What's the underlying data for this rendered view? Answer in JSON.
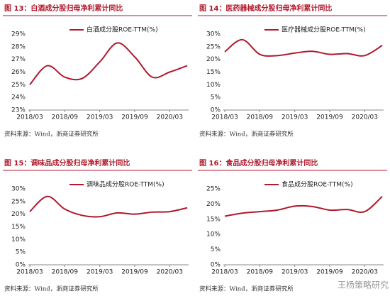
{
  "chart_data": [
    {
      "type": "line",
      "title": "图 13：白酒成分股归母净利累计同比",
      "source": "资料来源：Wind，浙商证券研究所",
      "x": [
        "2018/03",
        "2018/06",
        "2018/09",
        "2018/12",
        "2019/03",
        "2019/06",
        "2019/09",
        "2019/12",
        "2020/03",
        "2020/06"
      ],
      "xticks": [
        "2018/03",
        "2018/09",
        "2019/03",
        "2019/09",
        "2020/03"
      ],
      "series": [
        {
          "name": "白酒成分股ROE-TTM(%)",
          "color": "#b0182b",
          "values": [
            25.0,
            26.5,
            25.6,
            25.5,
            26.8,
            28.3,
            27.2,
            25.6,
            26.0,
            26.5
          ]
        }
      ],
      "ylim": [
        23,
        29
      ],
      "yticks": [
        {
          "value": 23,
          "label": "23%"
        },
        {
          "value": 24,
          "label": "24%"
        },
        {
          "value": 25,
          "label": "25%"
        },
        {
          "value": 26,
          "label": "26%"
        },
        {
          "value": 27,
          "label": "27%"
        },
        {
          "value": 28,
          "label": "28%"
        },
        {
          "value": 29,
          "label": "29%"
        }
      ],
      "grid": false
    },
    {
      "type": "line",
      "title": "图 14：医药器械成分股归母净利累计同比",
      "source": "资料来源：Wind，浙商证券研究所",
      "x": [
        "2018/03",
        "2018/06",
        "2018/09",
        "2018/12",
        "2019/03",
        "2019/06",
        "2019/09",
        "2019/12",
        "2020/03",
        "2020/06"
      ],
      "xticks": [
        "2018/03",
        "2018/09",
        "2019/03",
        "2019/09",
        "2020/03"
      ],
      "series": [
        {
          "name": "医疗器械成分股ROE-TTM(%)",
          "color": "#b0182b",
          "values": [
            23.0,
            27.8,
            22.0,
            21.5,
            22.5,
            23.2,
            22.0,
            22.3,
            21.5,
            25.5
          ]
        }
      ],
      "ylim": [
        0,
        30
      ],
      "yticks": [
        {
          "value": 0,
          "label": "0%"
        },
        {
          "value": 5,
          "label": "5%"
        },
        {
          "value": 10,
          "label": "10%"
        },
        {
          "value": 15,
          "label": "15%"
        },
        {
          "value": 20,
          "label": "20%"
        },
        {
          "value": 25,
          "label": "25%"
        },
        {
          "value": 30,
          "label": "30%"
        }
      ],
      "grid": false
    },
    {
      "type": "line",
      "title": "图 15：调味品成分股归母净利累计同比",
      "source": "资料来源：Wind，浙商证券研究所",
      "x": [
        "2018/03",
        "2018/06",
        "2018/09",
        "2018/12",
        "2019/03",
        "2019/06",
        "2019/09",
        "2019/12",
        "2020/03",
        "2020/06"
      ],
      "xticks": [
        "2018/03",
        "2018/09",
        "2019/03",
        "2019/09",
        "2020/03"
      ],
      "series": [
        {
          "name": "调味品成分股ROE-TTM(%)",
          "color": "#b0182b",
          "values": [
            21.0,
            27.0,
            22.0,
            19.5,
            19.0,
            20.5,
            20.0,
            20.8,
            21.0,
            22.5
          ]
        }
      ],
      "ylim": [
        0,
        30
      ],
      "yticks": [
        {
          "value": 0,
          "label": "0%"
        },
        {
          "value": 5,
          "label": "5%"
        },
        {
          "value": 10,
          "label": "10%"
        },
        {
          "value": 15,
          "label": "15%"
        },
        {
          "value": 20,
          "label": "20%"
        },
        {
          "value": 25,
          "label": "25%"
        },
        {
          "value": 30,
          "label": "30%"
        }
      ],
      "grid": false
    },
    {
      "type": "line",
      "title": "图 16：食品成分股归母净利累计同比",
      "source": "资料来源：Wind，浙商证券研究所",
      "x": [
        "2018/03",
        "2018/06",
        "2018/09",
        "2018/12",
        "2019/03",
        "2019/06",
        "2019/09",
        "2019/12",
        "2020/03",
        "2020/06"
      ],
      "xticks": [
        "2018/03",
        "2018/09",
        "2019/03",
        "2019/09",
        "2020/03"
      ],
      "series": [
        {
          "name": "食品成分股ROE-TTM(%)",
          "color": "#b0182b",
          "values": [
            16.0,
            17.0,
            17.5,
            18.0,
            19.3,
            19.2,
            18.0,
            18.2,
            17.5,
            22.5
          ]
        }
      ],
      "ylim": [
        0,
        25
      ],
      "yticks": [
        {
          "value": 0,
          "label": "0%"
        },
        {
          "value": 5,
          "label": "5%"
        },
        {
          "value": 10,
          "label": "10%"
        },
        {
          "value": 15,
          "label": "15%"
        },
        {
          "value": 20,
          "label": "20%"
        },
        {
          "value": 25,
          "label": "25%"
        }
      ],
      "grid": false
    }
  ],
  "watermark": "王杨策略研究"
}
